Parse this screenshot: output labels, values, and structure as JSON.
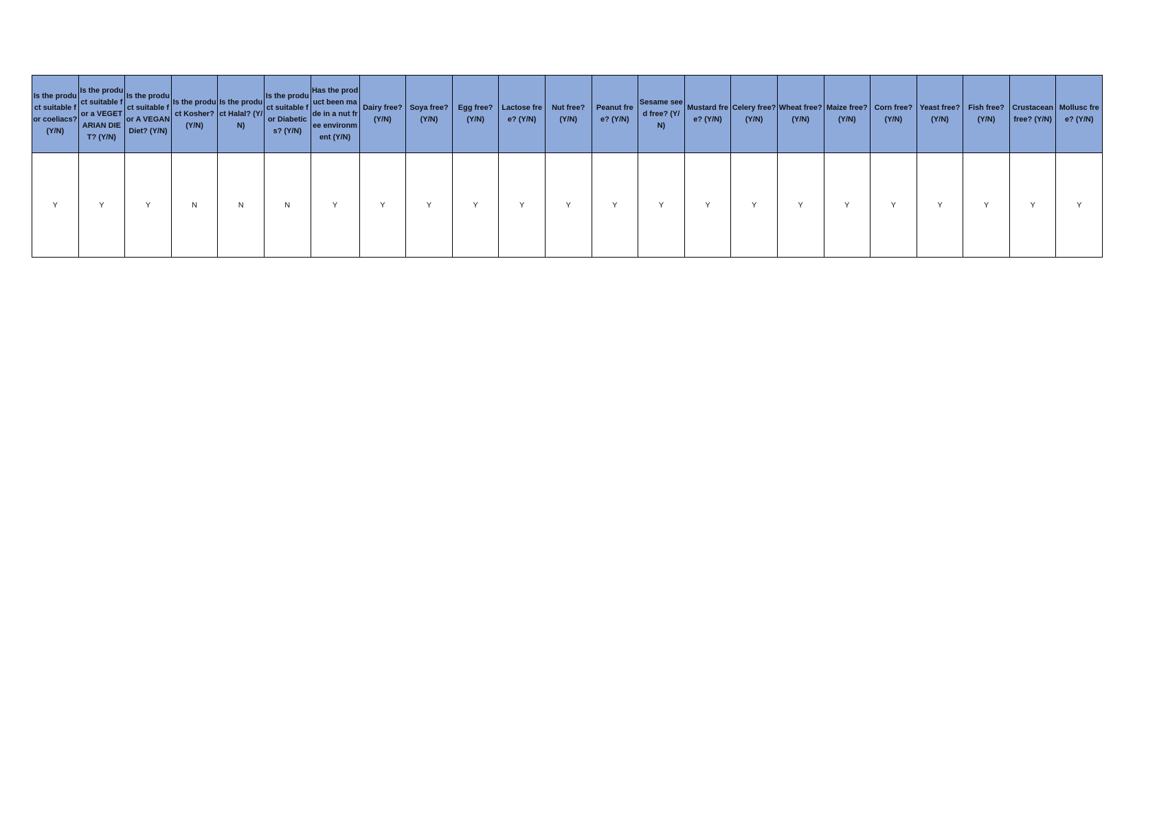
{
  "table": {
    "headers": [
      "Is the product suitable for coeliacs? (Y/N)",
      "Is the product suitable for a VEGETARIAN DIET? (Y/N)",
      "Is the product suitable for A VEGAN Diet? (Y/N)",
      "Is the product Kosher? (Y/N)",
      "Is the product Halal? (Y/N)",
      "Is the product suitable for Diabetics? (Y/N)",
      "Has the product been made in a nut free environment (Y/N)",
      "Dairy free? (Y/N)",
      "Soya free? (Y/N)",
      "Egg free? (Y/N)",
      "Lactose free? (Y/N)",
      "Nut free? (Y/N)",
      "Peanut free? (Y/N)",
      "Sesame seed free? (Y/N)",
      "Mustard free? (Y/N)",
      "Celery free? (Y/N)",
      "Wheat free? (Y/N)",
      "Maize free? (Y/N)",
      "Corn free? (Y/N)",
      "Yeast free? (Y/N)",
      "Fish free? (Y/N)",
      "Crustacean free? (Y/N)",
      "Mollusc free? (Y/N)"
    ],
    "rows": [
      [
        "Y",
        "Y",
        "Y",
        "N",
        "N",
        "N",
        "Y",
        "Y",
        "Y",
        "Y",
        "Y",
        "Y",
        "Y",
        "Y",
        "Y",
        "Y",
        "Y",
        "Y",
        "Y",
        "Y",
        "Y",
        "Y",
        "Y"
      ]
    ]
  }
}
